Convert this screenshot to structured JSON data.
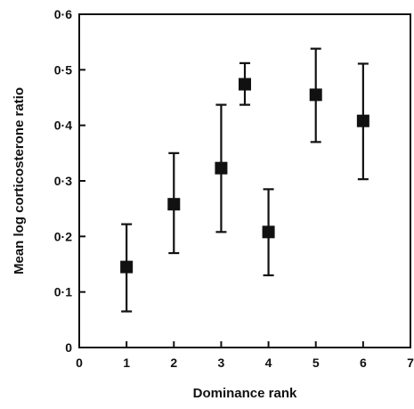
{
  "chart_data": {
    "type": "scatter",
    "title": "",
    "xlabel": "Dominance rank",
    "ylabel": "Mean log corticosterone ratio",
    "xlim": [
      0,
      7
    ],
    "ylim": [
      0,
      0.6
    ],
    "x_ticks": [
      0,
      1,
      2,
      3,
      4,
      5,
      6,
      7
    ],
    "x_tick_labels": [
      "0",
      "1",
      "2",
      "3",
      "4",
      "5",
      "6",
      "7"
    ],
    "y_ticks": [
      0,
      0.1,
      0.2,
      0.3,
      0.4,
      0.5,
      0.6
    ],
    "y_tick_labels": [
      "0",
      "0·1",
      "0·2",
      "0·3",
      "0·4",
      "0·5",
      "0·6"
    ],
    "grid": false,
    "marker": "square",
    "error_bars": true,
    "points": [
      {
        "x": 1,
        "y": 0.145,
        "low": 0.065,
        "high": 0.222
      },
      {
        "x": 2,
        "y": 0.258,
        "low": 0.17,
        "high": 0.35
      },
      {
        "x": 3,
        "y": 0.323,
        "low": 0.208,
        "high": 0.437
      },
      {
        "x": 3.5,
        "y": 0.474,
        "low": 0.437,
        "high": 0.512
      },
      {
        "x": 4,
        "y": 0.208,
        "low": 0.13,
        "high": 0.285
      },
      {
        "x": 5,
        "y": 0.455,
        "low": 0.37,
        "high": 0.538
      },
      {
        "x": 6,
        "y": 0.408,
        "low": 0.303,
        "high": 0.511
      }
    ]
  }
}
